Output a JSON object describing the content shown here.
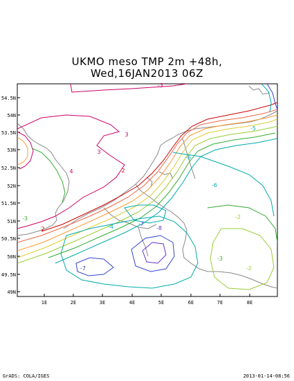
{
  "title": {
    "line1": "UKMO meso TMP 2m +48h,",
    "line2": "Wed,16JAN2013 06Z"
  },
  "footer": {
    "left": "GrADS: COLA/IGES",
    "right": "2013-01-14-08:56"
  },
  "axes": {
    "lat_labels": [
      "54.5N",
      "54N",
      "53.5N",
      "53N",
      "52.5N",
      "52N",
      "51.5N",
      "51N",
      "50.5N",
      "50N",
      "49.5N",
      "49N"
    ],
    "lon_labels": [
      "1E",
      "2E",
      "3E",
      "4E",
      "5E",
      "6E",
      "7E",
      "8E"
    ]
  },
  "contour_labels": [
    {
      "text": "-3",
      "color": "#cc0066"
    },
    {
      "text": "3",
      "color": "#cc0066"
    },
    {
      "text": "3",
      "color": "#cc0066"
    },
    {
      "text": "2",
      "color": "#cc0000"
    },
    {
      "text": "2",
      "color": "#cc0000"
    },
    {
      "text": "4",
      "color": "#cc0066"
    },
    {
      "text": "-3",
      "color": "#33aa33"
    },
    {
      "text": "-6",
      "color": "#00aaaa"
    },
    {
      "text": "-6",
      "color": "#00aaaa"
    },
    {
      "text": "-7",
      "color": "#3344cc"
    },
    {
      "text": "-8",
      "color": "#6633cc"
    },
    {
      "text": "-7",
      "color": "#3344cc"
    },
    {
      "text": "-4",
      "color": "#00aaaa"
    },
    {
      "text": "-2",
      "color": "#99cc33"
    },
    {
      "text": "-3",
      "color": "#33aa33"
    },
    {
      "text": "-5",
      "color": "#00aaaa"
    },
    {
      "text": "-2",
      "color": "#99cc33"
    }
  ]
}
